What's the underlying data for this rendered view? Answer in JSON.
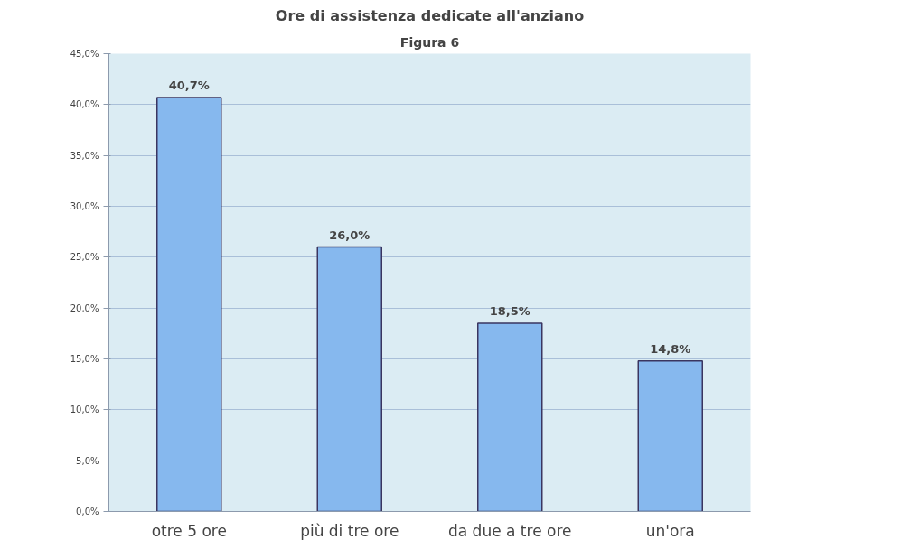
{
  "chart_data": {
    "type": "bar",
    "title": "Ore di assistenza dedicate all'anziano",
    "annotations": [
      "Figura 6"
    ],
    "categories": [
      "otre 5 ore",
      "più di tre ore",
      "da due a tre ore",
      "un'ora"
    ],
    "values": [
      40.7,
      26.0,
      18.5,
      14.8
    ],
    "value_labels": [
      "40,7%",
      "26,0%",
      "18,5%",
      "14,8%"
    ],
    "color": "#86b8ee",
    "ylim": [
      0,
      45
    ],
    "yticks": [
      {
        "value": 0,
        "label": "0,0%"
      },
      {
        "value": 5,
        "label": "5,0%"
      },
      {
        "value": 10,
        "label": "10,0%"
      },
      {
        "value": 15,
        "label": "15,0%"
      },
      {
        "value": 20,
        "label": "20,0%"
      },
      {
        "value": 25,
        "label": "25,0%"
      },
      {
        "value": 30,
        "label": "30,0%"
      },
      {
        "value": 35,
        "label": "35,0%"
      },
      {
        "value": 40,
        "label": "40,0%"
      },
      {
        "value": 45,
        "label": "45,0%"
      }
    ],
    "grid": "y"
  }
}
